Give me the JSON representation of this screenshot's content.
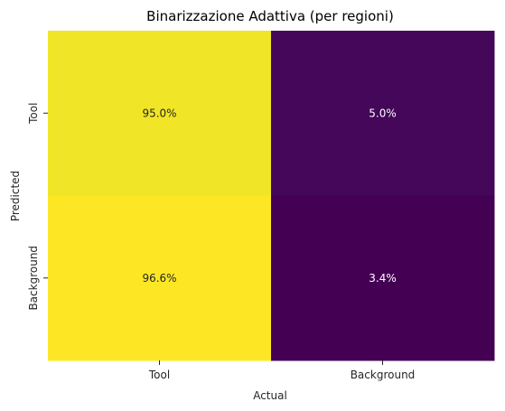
{
  "chart_data": {
    "type": "heatmap",
    "title": "Binarizzazione Adattiva (per regioni)",
    "xlabel": "Actual",
    "ylabel": "Predicted",
    "x_categories": [
      "Tool",
      "Background"
    ],
    "y_categories": [
      "Tool",
      "Background"
    ],
    "values": [
      [
        95.0,
        5.0
      ],
      [
        96.6,
        3.4
      ]
    ],
    "cell_labels": [
      [
        "95.0%",
        "5.0%"
      ],
      [
        "96.6%",
        "3.4%"
      ]
    ],
    "colormap": "viridis",
    "colorbar": false,
    "grid": false
  }
}
